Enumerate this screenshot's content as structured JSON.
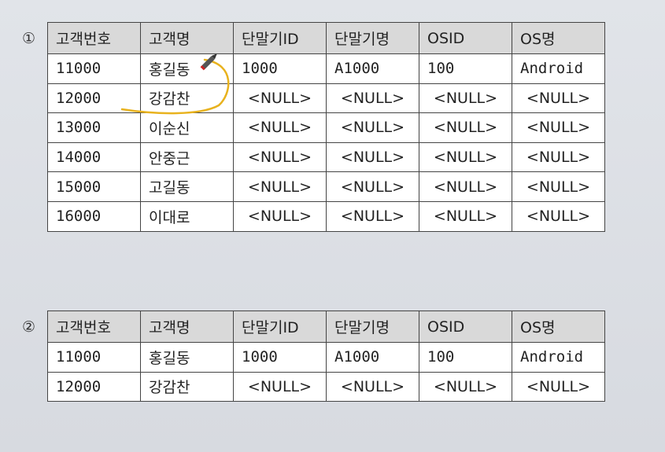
{
  "tables": [
    {
      "marker": "①",
      "headers": [
        "고객번호",
        "고객명",
        "단말기ID",
        "단말기명",
        "OSID",
        "OS명"
      ],
      "rows": [
        [
          "11000",
          "홍길동",
          "1000",
          "A1000",
          "100",
          "Android"
        ],
        [
          "12000",
          "강감찬",
          "<NULL>",
          "<NULL>",
          "<NULL>",
          "<NULL>"
        ],
        [
          "13000",
          "이순신",
          "<NULL>",
          "<NULL>",
          "<NULL>",
          "<NULL>"
        ],
        [
          "14000",
          "안중근",
          "<NULL>",
          "<NULL>",
          "<NULL>",
          "<NULL>"
        ],
        [
          "15000",
          "고길동",
          "<NULL>",
          "<NULL>",
          "<NULL>",
          "<NULL>"
        ],
        [
          "16000",
          "이대로",
          "<NULL>",
          "<NULL>",
          "<NULL>",
          "<NULL>"
        ]
      ]
    },
    {
      "marker": "②",
      "headers": [
        "고객번호",
        "고객명",
        "단말기ID",
        "단말기명",
        "OSID",
        "OS명"
      ],
      "rows": [
        [
          "11000",
          "홍길동",
          "1000",
          "A1000",
          "100",
          "Android"
        ],
        [
          "12000",
          "강감찬",
          "<NULL>",
          "<NULL>",
          "<NULL>",
          "<NULL>"
        ]
      ]
    }
  ],
  "colors": {
    "annotation": "#e8b21e",
    "header_bg": "#d9d9d9"
  },
  "icons": {
    "annotation_tool": "pen-cursor-icon"
  }
}
